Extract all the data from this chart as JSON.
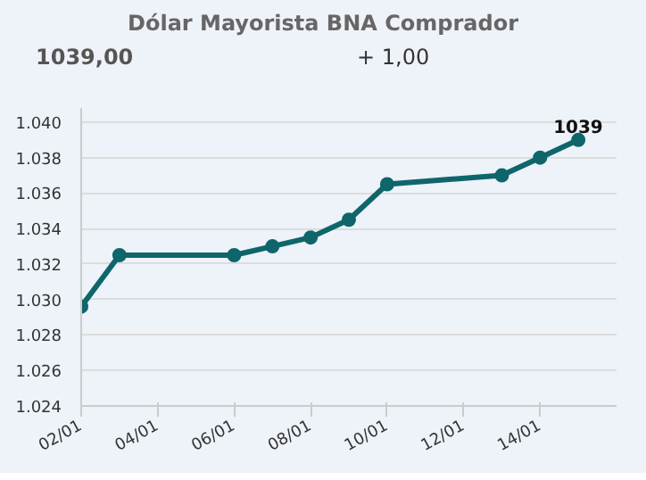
{
  "chart_data": {
    "type": "line",
    "title": "Dólar Mayorista BNA Comprador",
    "subtitle": "1039,00",
    "annotations": [
      "+ 1,00"
    ],
    "x": [
      "--01-02",
      "--01-03",
      "--01-06",
      "--01-07",
      "--01-08",
      "--01-09",
      "--01-10",
      "--01-13",
      "--01-14",
      "--01-15"
    ],
    "series": [
      {
        "color": "#0e666b",
        "values": [
          1029.6,
          1032.5,
          1032.5,
          1033.0,
          1033.5,
          1034.5,
          1036.5,
          1037.0,
          1038.0,
          1039.0
        ],
        "value_labels": [
          null,
          null,
          null,
          null,
          null,
          null,
          null,
          null,
          null,
          "1039"
        ]
      }
    ],
    "xlim": [
      "--01-02",
      "--01-16"
    ],
    "xticks": [
      {
        "value": "--01-02",
        "label": "02/01"
      },
      {
        "value": "--01-04",
        "label": "04/01"
      },
      {
        "value": "--01-06",
        "label": "06/01"
      },
      {
        "value": "--01-08",
        "label": "08/01"
      },
      {
        "value": "--01-10",
        "label": "10/01"
      },
      {
        "value": "--01-12",
        "label": "12/01"
      },
      {
        "value": "--01-14",
        "label": "14/01"
      }
    ],
    "ylim": [
      1024,
      1040.8
    ],
    "yticks": [
      {
        "value": 1024,
        "label": "1.024"
      },
      {
        "value": 1026,
        "label": "1.026"
      },
      {
        "value": 1028,
        "label": "1.028"
      },
      {
        "value": 1030,
        "label": "1.030"
      },
      {
        "value": 1032,
        "label": "1.032"
      },
      {
        "value": 1034,
        "label": "1.034"
      },
      {
        "value": 1036,
        "label": "1.036"
      },
      {
        "value": 1038,
        "label": "1.038"
      },
      {
        "value": 1040,
        "label": "1.040"
      }
    ],
    "grid": "y",
    "marker": "circle",
    "line_style": "solid"
  }
}
